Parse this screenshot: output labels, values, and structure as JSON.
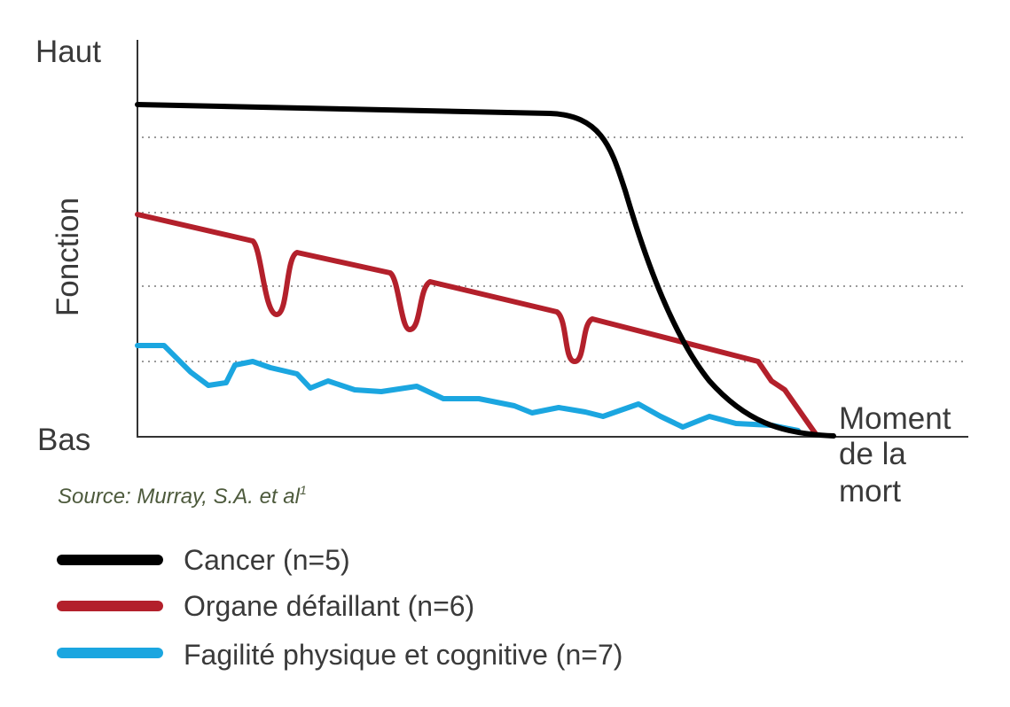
{
  "axes": {
    "y_top": "Haut",
    "y_bottom": "Bas",
    "y_label": "Fonction",
    "x_end": [
      "Moment",
      "de la",
      "mort"
    ]
  },
  "source": "Source: Murray, S.A. et al",
  "source_note": "1",
  "legend": [
    {
      "label": "Cancer (n=5)",
      "color": "#000000"
    },
    {
      "label": "Organe défaillant (n=6)",
      "color": "#b3202b"
    },
    {
      "label": "Fagilité physique et cognitive (n=7)",
      "color": "#1ba6e0"
    }
  ]
}
